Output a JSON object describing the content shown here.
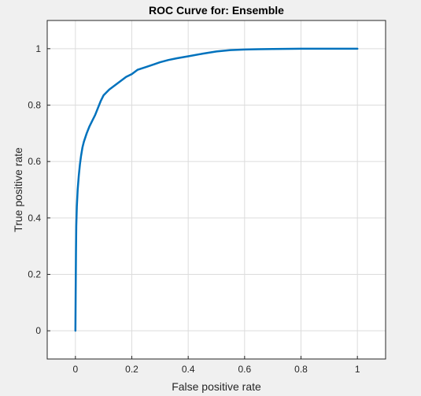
{
  "chart_data": {
    "type": "line",
    "title": "ROC Curve for: Ensemble",
    "xlabel": "False positive rate",
    "ylabel": "True positive rate",
    "xlim": [
      -0.1,
      1.1
    ],
    "ylim": [
      -0.1,
      1.1
    ],
    "xticks": [
      0,
      0.2,
      0.4,
      0.6,
      0.8,
      1
    ],
    "yticks": [
      0,
      0.2,
      0.4,
      0.6,
      0.8,
      1
    ],
    "xtick_labels": [
      "0",
      "0.2",
      "0.4",
      "0.6",
      "0.8",
      "1"
    ],
    "ytick_labels": [
      "0",
      "0.2",
      "0.4",
      "0.6",
      "0.8",
      "1"
    ],
    "grid": true,
    "legend": "none",
    "colors": {
      "series": "#0072bd",
      "grid": "#dcdcdc",
      "axes": "#262626",
      "plot_bg": "#ffffff",
      "figure_bg": "#f0f0f0"
    },
    "series": [
      {
        "x": [
          0,
          0.001,
          0.002,
          0.003,
          0.005,
          0.008,
          0.012,
          0.016,
          0.02,
          0.025,
          0.03,
          0.04,
          0.05,
          0.06,
          0.07,
          0.08,
          0.09,
          0.1,
          0.11,
          0.12,
          0.14,
          0.16,
          0.18,
          0.2,
          0.22,
          0.25,
          0.28,
          0.3,
          0.33,
          0.36,
          0.4,
          0.45,
          0.5,
          0.55,
          0.6,
          0.65,
          0.7,
          0.8,
          0.9,
          1
        ],
        "y": [
          0,
          0.15,
          0.28,
          0.37,
          0.44,
          0.5,
          0.55,
          0.59,
          0.62,
          0.65,
          0.67,
          0.7,
          0.725,
          0.745,
          0.765,
          0.79,
          0.815,
          0.835,
          0.845,
          0.855,
          0.87,
          0.885,
          0.9,
          0.91,
          0.925,
          0.935,
          0.945,
          0.952,
          0.96,
          0.966,
          0.973,
          0.982,
          0.99,
          0.995,
          0.997,
          0.998,
          0.999,
          1,
          1,
          1
        ]
      }
    ]
  }
}
